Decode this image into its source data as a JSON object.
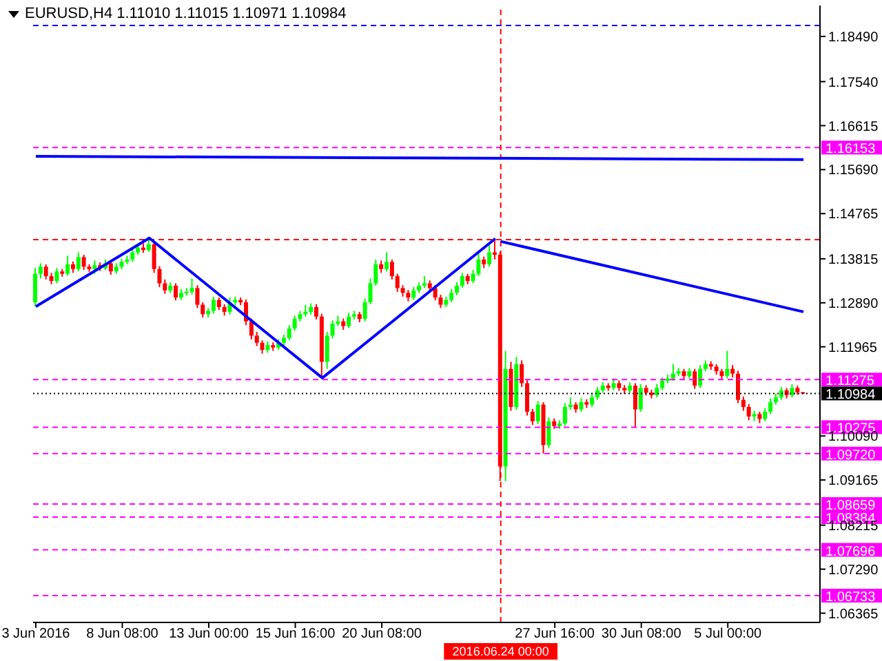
{
  "chart_data": {
    "type": "candlestick",
    "title": "EURUSD,H4 1.11010 1.11015 1.10971 1.10984",
    "categories": [
      "3 Jun 2016",
      null,
      null,
      null,
      null,
      null,
      null,
      null,
      null,
      null,
      null,
      null,
      null,
      null,
      null,
      null,
      "8 Jun 08:00",
      null,
      null,
      null,
      null,
      null,
      null,
      null,
      null,
      null,
      null,
      null,
      null,
      null,
      null,
      null,
      "13 Jun 00:00",
      null,
      null,
      null,
      null,
      null,
      null,
      null,
      null,
      null,
      null,
      null,
      null,
      null,
      null,
      null,
      "15 Jun 16:00",
      null,
      null,
      null,
      null,
      null,
      null,
      null,
      null,
      null,
      null,
      null,
      null,
      null,
      null,
      null,
      "20 Jun 08:00",
      null,
      null,
      null,
      null,
      null,
      null,
      null,
      null,
      null,
      null,
      null,
      null,
      null,
      null,
      null,
      null,
      null,
      null,
      null,
      null,
      null,
      "2016.06.24 00:00",
      null,
      null,
      null,
      null,
      null,
      null,
      null,
      null,
      null,
      "27 Jun 16:00",
      null,
      null,
      null,
      null,
      null,
      null,
      null,
      null,
      null,
      null,
      null,
      null,
      null,
      null,
      null,
      "30 Jun 08:00",
      null,
      null,
      null,
      null,
      null,
      null,
      null,
      null,
      null,
      null,
      null,
      null,
      null,
      null,
      null,
      "5 Jul 00:00",
      null,
      null,
      null,
      null,
      null,
      null,
      null,
      null,
      null,
      null,
      null,
      null,
      null,
      null
    ],
    "ohlc": [
      [
        1.129,
        1.1362,
        1.1282,
        1.135
      ],
      [
        1.135,
        1.1372,
        1.134,
        1.1365
      ],
      [
        1.1365,
        1.137,
        1.1338,
        1.1345
      ],
      [
        1.1345,
        1.1352,
        1.1328,
        1.1335
      ],
      [
        1.1335,
        1.1362,
        1.133,
        1.1355
      ],
      [
        1.1355,
        1.136,
        1.1344,
        1.135
      ],
      [
        1.135,
        1.1388,
        1.1346,
        1.137
      ],
      [
        1.137,
        1.1376,
        1.1352,
        1.136
      ],
      [
        1.136,
        1.1395,
        1.1355,
        1.1385
      ],
      [
        1.1385,
        1.139,
        1.1358,
        1.1365
      ],
      [
        1.1365,
        1.137,
        1.1354,
        1.136
      ],
      [
        1.136,
        1.1378,
        1.135,
        1.1368
      ],
      [
        1.1368,
        1.1374,
        1.1356,
        1.1362
      ],
      [
        1.1362,
        1.138,
        1.1358,
        1.1372
      ],
      [
        1.1372,
        1.1378,
        1.1348,
        1.1355
      ],
      [
        1.1355,
        1.1372,
        1.135,
        1.1365
      ],
      [
        1.1365,
        1.1382,
        1.136,
        1.1375
      ],
      [
        1.1375,
        1.1388,
        1.137,
        1.138
      ],
      [
        1.138,
        1.1402,
        1.1375,
        1.1395
      ],
      [
        1.1395,
        1.1412,
        1.139,
        1.1405
      ],
      [
        1.1405,
        1.1414,
        1.1394,
        1.14
      ],
      [
        1.14,
        1.1428,
        1.1396,
        1.1412
      ],
      [
        1.1412,
        1.1418,
        1.1352,
        1.136
      ],
      [
        1.136,
        1.1366,
        1.1322,
        1.133
      ],
      [
        1.133,
        1.1338,
        1.1308,
        1.1315
      ],
      [
        1.1315,
        1.1332,
        1.131,
        1.1325
      ],
      [
        1.1325,
        1.133,
        1.1294,
        1.13
      ],
      [
        1.13,
        1.1318,
        1.1295,
        1.131
      ],
      [
        1.131,
        1.132,
        1.1304,
        1.1312
      ],
      [
        1.1312,
        1.134,
        1.1306,
        1.132
      ],
      [
        1.132,
        1.1326,
        1.1278,
        1.1285
      ],
      [
        1.1285,
        1.129,
        1.1258,
        1.1265
      ],
      [
        1.1265,
        1.1278,
        1.1258,
        1.1272
      ],
      [
        1.1272,
        1.1302,
        1.1266,
        1.1295
      ],
      [
        1.1295,
        1.13,
        1.1274,
        1.128
      ],
      [
        1.128,
        1.1286,
        1.1262,
        1.127
      ],
      [
        1.127,
        1.13,
        1.1264,
        1.129
      ],
      [
        1.129,
        1.1302,
        1.1284,
        1.1295
      ],
      [
        1.1295,
        1.13,
        1.1284,
        1.129
      ],
      [
        1.129,
        1.1296,
        1.1242,
        1.125
      ],
      [
        1.125,
        1.1256,
        1.1212,
        1.122
      ],
      [
        1.122,
        1.1228,
        1.1198,
        1.1205
      ],
      [
        1.1205,
        1.121,
        1.1182,
        1.119
      ],
      [
        1.119,
        1.1208,
        1.1184,
        1.12
      ],
      [
        1.12,
        1.1206,
        1.1188,
        1.1195
      ],
      [
        1.1195,
        1.1212,
        1.119,
        1.1205
      ],
      [
        1.1205,
        1.1222,
        1.12,
        1.1215
      ],
      [
        1.1215,
        1.1242,
        1.121,
        1.1235
      ],
      [
        1.1235,
        1.1262,
        1.123,
        1.1255
      ],
      [
        1.1255,
        1.1272,
        1.125,
        1.1265
      ],
      [
        1.1265,
        1.1285,
        1.126,
        1.127
      ],
      [
        1.127,
        1.1288,
        1.1264,
        1.128
      ],
      [
        1.128,
        1.1286,
        1.1254,
        1.126
      ],
      [
        1.126,
        1.1266,
        1.1131,
        1.1165
      ],
      [
        1.1165,
        1.1228,
        1.115,
        1.122
      ],
      [
        1.122,
        1.1252,
        1.1214,
        1.1245
      ],
      [
        1.1245,
        1.1262,
        1.124,
        1.125
      ],
      [
        1.125,
        1.1256,
        1.1232,
        1.124
      ],
      [
        1.124,
        1.1268,
        1.1236,
        1.126
      ],
      [
        1.126,
        1.1272,
        1.1254,
        1.1265
      ],
      [
        1.1265,
        1.127,
        1.1248,
        1.1255
      ],
      [
        1.1255,
        1.1298,
        1.125,
        1.129
      ],
      [
        1.129,
        1.134,
        1.1286,
        1.133
      ],
      [
        1.133,
        1.138,
        1.1325,
        1.137
      ],
      [
        1.137,
        1.1378,
        1.1352,
        1.136
      ],
      [
        1.136,
        1.1395,
        1.1355,
        1.1375
      ],
      [
        1.1375,
        1.138,
        1.1338,
        1.1345
      ],
      [
        1.1345,
        1.135,
        1.1312,
        1.132
      ],
      [
        1.132,
        1.1326,
        1.1302,
        1.131
      ],
      [
        1.131,
        1.1316,
        1.1292,
        1.13
      ],
      [
        1.13,
        1.1322,
        1.1295,
        1.1315
      ],
      [
        1.1315,
        1.1332,
        1.131,
        1.1325
      ],
      [
        1.1325,
        1.1345,
        1.132,
        1.133
      ],
      [
        1.133,
        1.1336,
        1.1314,
        1.132
      ],
      [
        1.132,
        1.1326,
        1.1294,
        1.13
      ],
      [
        1.13,
        1.1306,
        1.1278,
        1.1285
      ],
      [
        1.1285,
        1.1302,
        1.128,
        1.1295
      ],
      [
        1.1295,
        1.1318,
        1.129,
        1.131
      ],
      [
        1.131,
        1.1332,
        1.1305,
        1.1325
      ],
      [
        1.1325,
        1.1352,
        1.132,
        1.1345
      ],
      [
        1.1345,
        1.135,
        1.1328,
        1.1335
      ],
      [
        1.1335,
        1.1358,
        1.133,
        1.135
      ],
      [
        1.135,
        1.1392,
        1.1345,
        1.138
      ],
      [
        1.138,
        1.1386,
        1.1362,
        1.137
      ],
      [
        1.137,
        1.141,
        1.1365,
        1.1395
      ],
      [
        1.1395,
        1.1424,
        1.138,
        1.139
      ],
      [
        1.139,
        1.1396,
        1.0914,
        1.0945
      ],
      [
        1.0945,
        1.1188,
        1.0914,
        1.115
      ],
      [
        1.115,
        1.1165,
        1.1062,
        1.107
      ],
      [
        1.107,
        1.1175,
        1.1064,
        1.116
      ],
      [
        1.116,
        1.1168,
        1.1112,
        1.112
      ],
      [
        1.112,
        1.1126,
        1.1052,
        1.106
      ],
      [
        1.106,
        1.1066,
        1.1032,
        1.104
      ],
      [
        1.104,
        1.1082,
        1.1034,
        1.1075
      ],
      [
        1.1075,
        1.108,
        1.0972,
        1.099
      ],
      [
        1.099,
        1.1048,
        1.0984,
        1.104
      ],
      [
        1.104,
        1.1046,
        1.1024,
        1.103
      ],
      [
        1.103,
        1.1042,
        1.1024,
        1.1035
      ],
      [
        1.1035,
        1.1078,
        1.103,
        1.107
      ],
      [
        1.107,
        1.109,
        1.1064,
        1.1075
      ],
      [
        1.1075,
        1.108,
        1.1058,
        1.1065
      ],
      [
        1.1065,
        1.1088,
        1.106,
        1.108
      ],
      [
        1.108,
        1.1086,
        1.1068,
        1.1075
      ],
      [
        1.1075,
        1.1098,
        1.107,
        1.109
      ],
      [
        1.109,
        1.1112,
        1.1085,
        1.1105
      ],
      [
        1.1105,
        1.1122,
        1.11,
        1.1115
      ],
      [
        1.1115,
        1.112,
        1.1104,
        1.111
      ],
      [
        1.111,
        1.113,
        1.1105,
        1.112
      ],
      [
        1.112,
        1.1126,
        1.1104,
        1.111
      ],
      [
        1.111,
        1.1116,
        1.1098,
        1.1105
      ],
      [
        1.1105,
        1.1122,
        1.11,
        1.1115
      ],
      [
        1.1115,
        1.112,
        1.1027,
        1.1065
      ],
      [
        1.1065,
        1.1118,
        1.106,
        1.111
      ],
      [
        1.111,
        1.1116,
        1.1094,
        1.11
      ],
      [
        1.11,
        1.1106,
        1.1088,
        1.1095
      ],
      [
        1.1095,
        1.1118,
        1.109,
        1.111
      ],
      [
        1.111,
        1.1132,
        1.1105,
        1.1125
      ],
      [
        1.1125,
        1.1138,
        1.112,
        1.113
      ],
      [
        1.113,
        1.116,
        1.1125,
        1.114
      ],
      [
        1.114,
        1.1152,
        1.1135,
        1.1145
      ],
      [
        1.1145,
        1.115,
        1.1128,
        1.1135
      ],
      [
        1.1135,
        1.1152,
        1.113,
        1.1145
      ],
      [
        1.1145,
        1.115,
        1.1108,
        1.1115
      ],
      [
        1.1115,
        1.1158,
        1.111,
        1.115
      ],
      [
        1.115,
        1.1168,
        1.1145,
        1.116
      ],
      [
        1.116,
        1.1166,
        1.1148,
        1.1155
      ],
      [
        1.1155,
        1.116,
        1.1138,
        1.1145
      ],
      [
        1.1145,
        1.115,
        1.1128,
        1.1135
      ],
      [
        1.1135,
        1.1188,
        1.113,
        1.115
      ],
      [
        1.115,
        1.1158,
        1.1132,
        1.114
      ],
      [
        1.114,
        1.1146,
        1.1078,
        1.1085
      ],
      [
        1.1085,
        1.1092,
        1.1062,
        1.107
      ],
      [
        1.107,
        1.1076,
        1.1042,
        1.105
      ],
      [
        1.105,
        1.1062,
        1.104,
        1.1055
      ],
      [
        1.1055,
        1.106,
        1.1036,
        1.1045
      ],
      [
        1.1045,
        1.1068,
        1.104,
        1.106
      ],
      [
        1.106,
        1.1088,
        1.1055,
        1.108
      ],
      [
        1.108,
        1.1098,
        1.1075,
        1.109
      ],
      [
        1.109,
        1.1112,
        1.1085,
        1.1105
      ],
      [
        1.1105,
        1.111,
        1.1088,
        1.1095
      ],
      [
        1.1095,
        1.1118,
        1.109,
        1.111
      ],
      [
        1.111,
        1.1115,
        1.1096,
        1.1101
      ],
      [
        1.1101,
        1.11015,
        1.10971,
        1.10984
      ]
    ],
    "series": [
      {
        "type": "line",
        "color": "#0000ff",
        "values": [
          1.1281,
          null,
          null,
          null,
          null,
          null,
          null,
          null,
          null,
          null,
          null,
          null,
          null,
          null,
          null,
          null,
          null,
          null,
          null,
          null,
          null,
          1.1425,
          null,
          null,
          null,
          null,
          null,
          null,
          null,
          null,
          null,
          null,
          null,
          null,
          null,
          null,
          null,
          null,
          null,
          null,
          null,
          null,
          null,
          null,
          null,
          null,
          null,
          null,
          null,
          null,
          null,
          null,
          null,
          1.1131,
          null,
          null,
          null,
          null,
          null,
          null,
          null,
          null,
          null,
          null,
          null,
          null,
          null,
          null,
          null,
          null,
          null,
          null,
          null,
          null,
          null,
          null,
          null,
          null,
          null,
          null,
          null,
          null,
          null,
          null,
          null,
          1.1424,
          null,
          null,
          null,
          null,
          null,
          null,
          null,
          null,
          null,
          null,
          null,
          null,
          null,
          null,
          null,
          null,
          null,
          null,
          null,
          null,
          null,
          null,
          null,
          null,
          null,
          null,
          null,
          null,
          null,
          null,
          null,
          null,
          null,
          null,
          null,
          null,
          null,
          null,
          null,
          null,
          null,
          null,
          null,
          null,
          null,
          null,
          null,
          null,
          null,
          null,
          null,
          null,
          null,
          null,
          null,
          null,
          null
        ]
      },
      {
        "type": "line",
        "color": "#0000ff",
        "values": [
          1.1597,
          null,
          null,
          null,
          null,
          null,
          null,
          null,
          null,
          null,
          null,
          null,
          null,
          null,
          null,
          null,
          null,
          null,
          null,
          null,
          null,
          null,
          null,
          null,
          null,
          null,
          null,
          null,
          null,
          null,
          null,
          null,
          null,
          null,
          null,
          null,
          null,
          null,
          null,
          null,
          null,
          null,
          null,
          null,
          null,
          null,
          null,
          null,
          null,
          null,
          null,
          null,
          null,
          null,
          null,
          null,
          null,
          null,
          null,
          null,
          null,
          null,
          null,
          null,
          null,
          null,
          null,
          null,
          null,
          null,
          null,
          null,
          null,
          null,
          null,
          null,
          null,
          null,
          null,
          null,
          null,
          null,
          null,
          null,
          null,
          null,
          null,
          null,
          null,
          null,
          null,
          null,
          null,
          null,
          null,
          null,
          null,
          null,
          null,
          null,
          null,
          null,
          null,
          null,
          null,
          null,
          null,
          null,
          null,
          null,
          null,
          null,
          null,
          null,
          null,
          null,
          null,
          null,
          null,
          null,
          null,
          null,
          null,
          null,
          null,
          null,
          null,
          null,
          null,
          null,
          null,
          null,
          null,
          null,
          null,
          null,
          null,
          null,
          null,
          null,
          null,
          null,
          1.159
        ]
      },
      {
        "type": "line",
        "color": "#0000ff",
        "values": [
          null,
          null,
          null,
          null,
          null,
          null,
          null,
          null,
          null,
          null,
          null,
          null,
          null,
          null,
          null,
          null,
          null,
          null,
          null,
          null,
          null,
          null,
          null,
          null,
          null,
          null,
          null,
          null,
          null,
          null,
          null,
          null,
          null,
          null,
          null,
          null,
          null,
          null,
          null,
          null,
          null,
          null,
          null,
          null,
          null,
          null,
          null,
          null,
          null,
          null,
          null,
          null,
          null,
          null,
          null,
          null,
          null,
          null,
          null,
          null,
          null,
          null,
          null,
          null,
          null,
          null,
          null,
          null,
          null,
          null,
          null,
          null,
          null,
          null,
          null,
          null,
          null,
          null,
          null,
          null,
          null,
          null,
          null,
          null,
          null,
          null,
          1.1418,
          null,
          null,
          null,
          null,
          null,
          null,
          null,
          null,
          null,
          null,
          null,
          null,
          null,
          null,
          null,
          null,
          null,
          null,
          null,
          null,
          null,
          null,
          null,
          null,
          null,
          null,
          null,
          null,
          null,
          null,
          null,
          null,
          null,
          null,
          null,
          null,
          null,
          null,
          null,
          null,
          null,
          null,
          null,
          null,
          null,
          null,
          null,
          null,
          null,
          null,
          null,
          null,
          null,
          null,
          null,
          1.127
        ]
      }
    ],
    "ylim": [
      1.0617,
      1.1914
    ],
    "yticks": [
      1.06365,
      {
        "value": 1.0729,
        "label": "1.07290"
      },
      1.08215,
      1.09165,
      {
        "value": 1.1009,
        "label": "1.10090"
      },
      1.11965,
      {
        "value": 1.1289,
        "label": "1.12890"
      },
      1.13815,
      1.14765,
      {
        "value": 1.1569,
        "label": "1.15690"
      },
      1.16615,
      {
        "value": 1.1754,
        "label": "1.17540"
      },
      {
        "value": 1.1849,
        "label": "1.18490"
      }
    ],
    "ref_lines": [
      {
        "axis": "y",
        "value": 1.16153,
        "label": "1.16153",
        "color": "#ff00ff",
        "line_style": "dashed"
      },
      {
        "axis": "y",
        "value": 1.11275,
        "label": "1.11275",
        "color": "#ff00ff",
        "line_style": "dashed"
      },
      {
        "axis": "y",
        "value": 1.10984,
        "label": "1.10984",
        "color": "#000000",
        "line_style": "dotted"
      },
      {
        "axis": "y",
        "value": 1.10275,
        "label": "1.10275",
        "color": "#ff00ff",
        "line_style": "dashed"
      },
      {
        "axis": "y",
        "value": 1.0972,
        "label": "1.09720",
        "color": "#ff00ff",
        "line_style": "dashed"
      },
      {
        "axis": "y",
        "value": 1.08659,
        "label": "1.08659",
        "color": "#ff00ff",
        "line_style": "dashed"
      },
      {
        "axis": "y",
        "value": 1.08384,
        "label": "1.08384",
        "color": "#ff00ff",
        "line_style": "dashed"
      },
      {
        "axis": "y",
        "value": 1.07696,
        "label": "1.07696",
        "color": "#ff00ff",
        "line_style": "dashed"
      },
      {
        "axis": "y",
        "value": 1.06733,
        "label": "1.06733",
        "color": "#ff00ff",
        "line_style": "dashed"
      },
      {
        "axis": "y",
        "value": 1.1872,
        "color": "#0000ff",
        "line_style": "dashed"
      },
      {
        "axis": "y",
        "value": 1.1422,
        "color": "#ff0000",
        "line_style": "dashed"
      },
      {
        "axis": "x",
        "value": "2016.06.24 00:00",
        "color": "#ff0000",
        "line_style": "dashed"
      }
    ]
  }
}
